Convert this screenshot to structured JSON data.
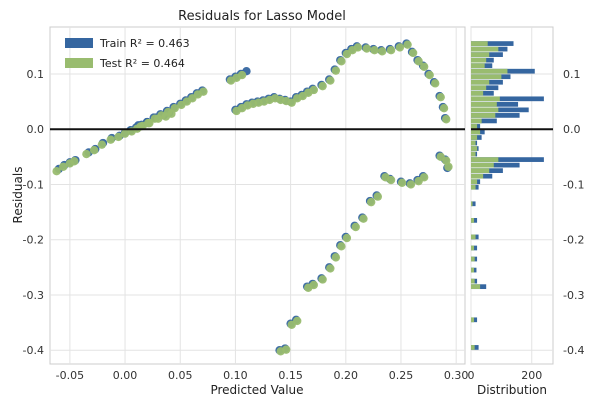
{
  "chart_data": {
    "type": "scatter",
    "title": "Residuals for Lasso Model",
    "xlabel": "Predicted Value",
    "ylabel": "Residuals",
    "hist_xlabel": "Distribution",
    "xlim": [
      -0.068,
      0.308
    ],
    "ylim": [
      -0.425,
      0.185
    ],
    "x_ticks": [
      "-0.05",
      "0.00",
      "0.05",
      "0.10",
      "0.15",
      "0.20",
      "0.25",
      "0.30"
    ],
    "x_tick_values": [
      -0.05,
      0.0,
      0.05,
      0.1,
      0.15,
      0.2,
      0.25,
      0.3
    ],
    "y_ticks": [
      "0.1",
      "0.0",
      "-0.1",
      "-0.2",
      "-0.3",
      "-0.4"
    ],
    "y_tick_values": [
      0.1,
      0.0,
      -0.1,
      -0.2,
      -0.3,
      -0.4
    ],
    "hist_x_ticks": [
      "0",
      "200"
    ],
    "hist_x_tick_values": [
      0,
      200
    ],
    "hist_xlim": [
      0,
      270
    ],
    "grid": true,
    "legend_position": "top-left",
    "colors": {
      "train": "#3566a0",
      "test": "#99bc6f",
      "zero_line": "#111111"
    },
    "series": [
      {
        "name": "Train",
        "legend_label": "Train R² = 0.463",
        "points": [
          [
            -0.06,
            -0.072
          ],
          [
            -0.055,
            -0.065
          ],
          [
            -0.05,
            -0.06
          ],
          [
            -0.045,
            -0.056
          ],
          [
            -0.033,
            -0.042
          ],
          [
            -0.027,
            -0.036
          ],
          [
            -0.02,
            -0.025
          ],
          [
            -0.012,
            -0.016
          ],
          [
            -0.005,
            -0.012
          ],
          [
            0.0,
            -0.006
          ],
          [
            0.005,
            -0.002
          ],
          [
            0.01,
            0.003
          ],
          [
            0.015,
            0.008
          ],
          [
            0.02,
            0.013
          ],
          [
            0.026,
            0.021
          ],
          [
            0.032,
            0.027
          ],
          [
            0.038,
            0.033
          ],
          [
            0.044,
            0.04
          ],
          [
            0.05,
            0.046
          ],
          [
            0.055,
            0.052
          ],
          [
            0.06,
            0.058
          ],
          [
            0.065,
            0.065
          ],
          [
            0.07,
            0.07
          ],
          [
            0.005,
            -0.002
          ],
          [
            0.012,
            0.007
          ],
          [
            0.02,
            0.013
          ],
          [
            0.028,
            0.021
          ],
          [
            0.035,
            0.025
          ],
          [
            0.04,
            0.03
          ],
          [
            0.095,
            0.09
          ],
          [
            0.1,
            0.095
          ],
          [
            0.105,
            0.1
          ],
          [
            0.11,
            0.105
          ],
          [
            0.1,
            0.035
          ],
          [
            0.105,
            0.04
          ],
          [
            0.11,
            0.045
          ],
          [
            0.115,
            0.048
          ],
          [
            0.12,
            0.05
          ],
          [
            0.125,
            0.052
          ],
          [
            0.13,
            0.055
          ],
          [
            0.135,
            0.058
          ],
          [
            0.14,
            0.055
          ],
          [
            0.145,
            0.053
          ],
          [
            0.15,
            0.05
          ],
          [
            0.155,
            0.058
          ],
          [
            0.16,
            0.062
          ],
          [
            0.165,
            0.068
          ],
          [
            0.17,
            0.073
          ],
          [
            0.178,
            0.08
          ],
          [
            0.185,
            0.09
          ],
          [
            0.19,
            0.108
          ],
          [
            0.195,
            0.125
          ],
          [
            0.2,
            0.138
          ],
          [
            0.205,
            0.145
          ],
          [
            0.21,
            0.15
          ],
          [
            0.218,
            0.148
          ],
          [
            0.225,
            0.145
          ],
          [
            0.232,
            0.143
          ],
          [
            0.24,
            0.145
          ],
          [
            0.248,
            0.15
          ],
          [
            0.255,
            0.155
          ],
          [
            0.26,
            0.14
          ],
          [
            0.265,
            0.125
          ],
          [
            0.27,
            0.115
          ],
          [
            0.275,
            0.1
          ],
          [
            0.28,
            0.085
          ],
          [
            0.285,
            0.06
          ],
          [
            0.288,
            0.04
          ],
          [
            0.29,
            0.02
          ],
          [
            0.285,
            -0.048
          ],
          [
            0.29,
            -0.055
          ],
          [
            0.292,
            -0.07
          ],
          [
            0.27,
            -0.085
          ],
          [
            0.265,
            -0.092
          ],
          [
            0.258,
            -0.098
          ],
          [
            0.25,
            -0.095
          ],
          [
            0.24,
            -0.09
          ],
          [
            0.235,
            -0.085
          ],
          [
            0.228,
            -0.12
          ],
          [
            0.222,
            -0.13
          ],
          [
            0.215,
            -0.16
          ],
          [
            0.208,
            -0.175
          ],
          [
            0.2,
            -0.195
          ],
          [
            0.195,
            -0.21
          ],
          [
            0.19,
            -0.23
          ],
          [
            0.185,
            -0.25
          ],
          [
            0.178,
            -0.27
          ],
          [
            0.17,
            -0.28
          ],
          [
            0.165,
            -0.285
          ],
          [
            0.155,
            -0.345
          ],
          [
            0.15,
            -0.352
          ],
          [
            0.145,
            -0.397
          ],
          [
            0.14,
            -0.4
          ]
        ]
      },
      {
        "name": "Test",
        "legend_label": "Test R² = 0.464",
        "points": [
          [
            -0.062,
            -0.076
          ],
          [
            -0.056,
            -0.068
          ],
          [
            -0.05,
            -0.062
          ],
          [
            -0.046,
            -0.058
          ],
          [
            -0.035,
            -0.045
          ],
          [
            -0.028,
            -0.038
          ],
          [
            -0.021,
            -0.028
          ],
          [
            -0.013,
            -0.019
          ],
          [
            -0.006,
            -0.014
          ],
          [
            0.0,
            -0.008
          ],
          [
            0.006,
            -0.004
          ],
          [
            0.011,
            0.001
          ],
          [
            0.016,
            0.006
          ],
          [
            0.021,
            0.011
          ],
          [
            0.027,
            0.019
          ],
          [
            0.033,
            0.025
          ],
          [
            0.039,
            0.031
          ],
          [
            0.045,
            0.038
          ],
          [
            0.051,
            0.044
          ],
          [
            0.056,
            0.05
          ],
          [
            0.061,
            0.056
          ],
          [
            0.066,
            0.063
          ],
          [
            0.071,
            0.068
          ],
          [
            0.014,
            0.005
          ],
          [
            0.022,
            0.011
          ],
          [
            0.03,
            0.019
          ],
          [
            0.037,
            0.023
          ],
          [
            0.042,
            0.028
          ],
          [
            0.096,
            0.088
          ],
          [
            0.101,
            0.093
          ],
          [
            0.106,
            0.098
          ],
          [
            0.101,
            0.033
          ],
          [
            0.106,
            0.038
          ],
          [
            0.111,
            0.043
          ],
          [
            0.116,
            0.046
          ],
          [
            0.121,
            0.048
          ],
          [
            0.126,
            0.05
          ],
          [
            0.131,
            0.053
          ],
          [
            0.136,
            0.056
          ],
          [
            0.141,
            0.053
          ],
          [
            0.146,
            0.051
          ],
          [
            0.151,
            0.048
          ],
          [
            0.156,
            0.056
          ],
          [
            0.161,
            0.06
          ],
          [
            0.166,
            0.066
          ],
          [
            0.171,
            0.071
          ],
          [
            0.179,
            0.078
          ],
          [
            0.186,
            0.088
          ],
          [
            0.191,
            0.106
          ],
          [
            0.196,
            0.123
          ],
          [
            0.201,
            0.136
          ],
          [
            0.206,
            0.143
          ],
          [
            0.211,
            0.148
          ],
          [
            0.219,
            0.146
          ],
          [
            0.226,
            0.143
          ],
          [
            0.233,
            0.141
          ],
          [
            0.241,
            0.143
          ],
          [
            0.249,
            0.148
          ],
          [
            0.256,
            0.153
          ],
          [
            0.261,
            0.138
          ],
          [
            0.266,
            0.123
          ],
          [
            0.271,
            0.113
          ],
          [
            0.276,
            0.098
          ],
          [
            0.281,
            0.083
          ],
          [
            0.286,
            0.058
          ],
          [
            0.289,
            0.038
          ],
          [
            0.291,
            0.018
          ],
          [
            0.286,
            -0.05
          ],
          [
            0.291,
            -0.057
          ],
          [
            0.293,
            -0.068
          ],
          [
            0.271,
            -0.087
          ],
          [
            0.266,
            -0.094
          ],
          [
            0.259,
            -0.1
          ],
          [
            0.251,
            -0.097
          ],
          [
            0.241,
            -0.092
          ],
          [
            0.236,
            -0.087
          ],
          [
            0.229,
            -0.122
          ],
          [
            0.223,
            -0.132
          ],
          [
            0.216,
            -0.162
          ],
          [
            0.209,
            -0.177
          ],
          [
            0.201,
            -0.197
          ],
          [
            0.196,
            -0.212
          ],
          [
            0.191,
            -0.232
          ],
          [
            0.186,
            -0.252
          ],
          [
            0.179,
            -0.272
          ],
          [
            0.171,
            -0.282
          ],
          [
            0.166,
            -0.287
          ],
          [
            0.156,
            -0.347
          ],
          [
            0.151,
            -0.354
          ],
          [
            0.146,
            -0.399
          ],
          [
            0.141,
            -0.402
          ]
        ]
      }
    ],
    "distribution": {
      "bins": [
        {
          "y": 0.155,
          "train": 140,
          "test": 55
        },
        {
          "y": 0.145,
          "train": 120,
          "test": 90
        },
        {
          "y": 0.135,
          "train": 105,
          "test": 60
        },
        {
          "y": 0.125,
          "train": 75,
          "test": 50
        },
        {
          "y": 0.115,
          "train": 70,
          "test": 45
        },
        {
          "y": 0.105,
          "train": 210,
          "test": 120
        },
        {
          "y": 0.095,
          "train": 130,
          "test": 100
        },
        {
          "y": 0.085,
          "train": 105,
          "test": 60
        },
        {
          "y": 0.075,
          "train": 90,
          "test": 50
        },
        {
          "y": 0.065,
          "train": 75,
          "test": 40
        },
        {
          "y": 0.055,
          "train": 240,
          "test": 95
        },
        {
          "y": 0.045,
          "train": 155,
          "test": 85
        },
        {
          "y": 0.035,
          "train": 190,
          "test": 90
        },
        {
          "y": 0.025,
          "train": 160,
          "test": 80
        },
        {
          "y": 0.015,
          "train": 85,
          "test": 35
        },
        {
          "y": 0.005,
          "train": 30,
          "test": 20
        },
        {
          "y": -0.005,
          "train": 45,
          "test": 30
        },
        {
          "y": -0.015,
          "train": 35,
          "test": 20
        },
        {
          "y": -0.025,
          "train": 20,
          "test": 15
        },
        {
          "y": -0.035,
          "train": 25,
          "test": 20
        },
        {
          "y": -0.045,
          "train": 20,
          "test": 15
        },
        {
          "y": -0.055,
          "train": 240,
          "test": 90
        },
        {
          "y": -0.065,
          "train": 160,
          "test": 75
        },
        {
          "y": -0.075,
          "train": 105,
          "test": 60
        },
        {
          "y": -0.085,
          "train": 70,
          "test": 40
        },
        {
          "y": -0.095,
          "train": 30,
          "test": 20
        },
        {
          "y": -0.105,
          "train": 25,
          "test": 15
        },
        {
          "y": -0.135,
          "train": 15,
          "test": 5
        },
        {
          "y": -0.165,
          "train": 20,
          "test": 10
        },
        {
          "y": -0.195,
          "train": 25,
          "test": 15
        },
        {
          "y": -0.215,
          "train": 20,
          "test": 10
        },
        {
          "y": -0.235,
          "train": 20,
          "test": 12
        },
        {
          "y": -0.255,
          "train": 18,
          "test": 10
        },
        {
          "y": -0.275,
          "train": 20,
          "test": 12
        },
        {
          "y": -0.285,
          "train": 50,
          "test": 30
        },
        {
          "y": -0.345,
          "train": 20,
          "test": 10
        },
        {
          "y": -0.395,
          "train": 25,
          "test": 12
        }
      ]
    }
  }
}
